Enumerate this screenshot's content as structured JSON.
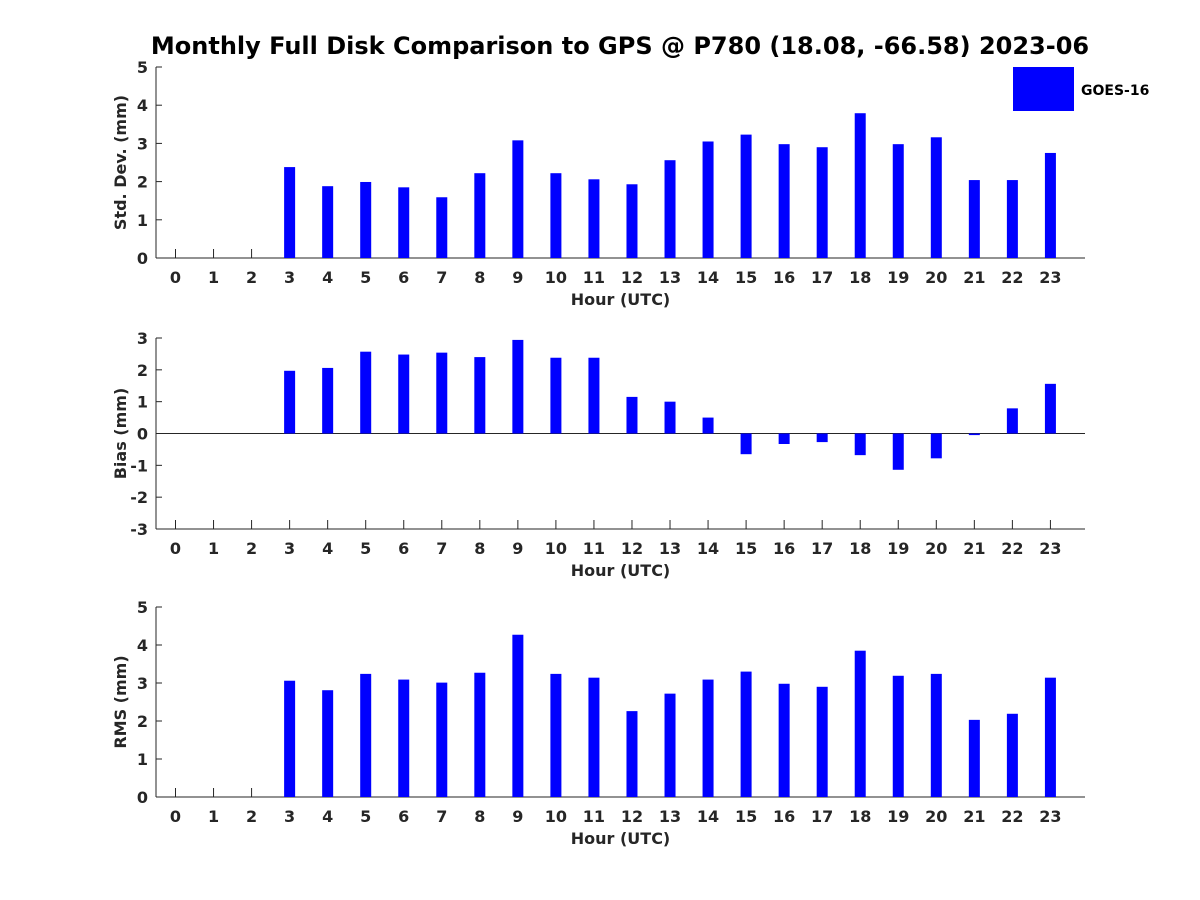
{
  "title": "Monthly Full Disk Comparison to GPS @ P780 (18.08, -66.58) 2023-06",
  "legend": {
    "label": "GOES-16",
    "placement": "top-right"
  },
  "colors": {
    "bar": "#0000ff",
    "axis": "#262626",
    "text": "#000000"
  },
  "chart_data": [
    {
      "type": "bar",
      "xlabel": "Hour (UTC)",
      "ylabel": "Std. Dev. (mm)",
      "ylim": [
        0,
        5
      ],
      "yticks": [
        0,
        1,
        2,
        3,
        4,
        5
      ],
      "categories": [
        "0",
        "1",
        "2",
        "3",
        "4",
        "5",
        "6",
        "7",
        "8",
        "9",
        "10",
        "11",
        "12",
        "13",
        "14",
        "15",
        "16",
        "17",
        "18",
        "19",
        "20",
        "21",
        "22",
        "23"
      ],
      "series": [
        {
          "name": "GOES-16",
          "values": [
            null,
            null,
            null,
            2.38,
            1.88,
            1.99,
            1.85,
            1.59,
            2.22,
            3.08,
            2.22,
            2.06,
            1.93,
            2.56,
            3.05,
            3.23,
            2.98,
            2.9,
            3.79,
            2.98,
            3.16,
            2.04,
            2.04,
            2.75
          ]
        }
      ]
    },
    {
      "type": "bar",
      "xlabel": "Hour (UTC)",
      "ylabel": "Bias (mm)",
      "ylim": [
        -3,
        3
      ],
      "yticks": [
        -3,
        -2,
        -1,
        0,
        1,
        2,
        3
      ],
      "categories": [
        "0",
        "1",
        "2",
        "3",
        "4",
        "5",
        "6",
        "7",
        "8",
        "9",
        "10",
        "11",
        "12",
        "13",
        "14",
        "15",
        "16",
        "17",
        "18",
        "19",
        "20",
        "21",
        "22",
        "23"
      ],
      "series": [
        {
          "name": "GOES-16",
          "values": [
            null,
            null,
            null,
            1.97,
            2.06,
            2.57,
            2.48,
            2.54,
            2.4,
            2.94,
            2.38,
            2.38,
            1.15,
            1.0,
            0.5,
            -0.65,
            -0.33,
            -0.27,
            -0.68,
            -1.14,
            -0.78,
            -0.05,
            0.79,
            1.56
          ]
        }
      ]
    },
    {
      "type": "bar",
      "xlabel": "Hour (UTC)",
      "ylabel": "RMS (mm)",
      "ylim": [
        0,
        5
      ],
      "yticks": [
        0,
        1,
        2,
        3,
        4,
        5
      ],
      "categories": [
        "0",
        "1",
        "2",
        "3",
        "4",
        "5",
        "6",
        "7",
        "8",
        "9",
        "10",
        "11",
        "12",
        "13",
        "14",
        "15",
        "16",
        "17",
        "18",
        "19",
        "20",
        "21",
        "22",
        "23"
      ],
      "series": [
        {
          "name": "GOES-16",
          "values": [
            null,
            null,
            null,
            3.06,
            2.81,
            3.24,
            3.09,
            3.01,
            3.27,
            4.27,
            3.24,
            3.14,
            2.26,
            2.72,
            3.09,
            3.3,
            2.98,
            2.9,
            3.85,
            3.19,
            3.24,
            2.03,
            2.19,
            3.14
          ]
        }
      ]
    }
  ]
}
